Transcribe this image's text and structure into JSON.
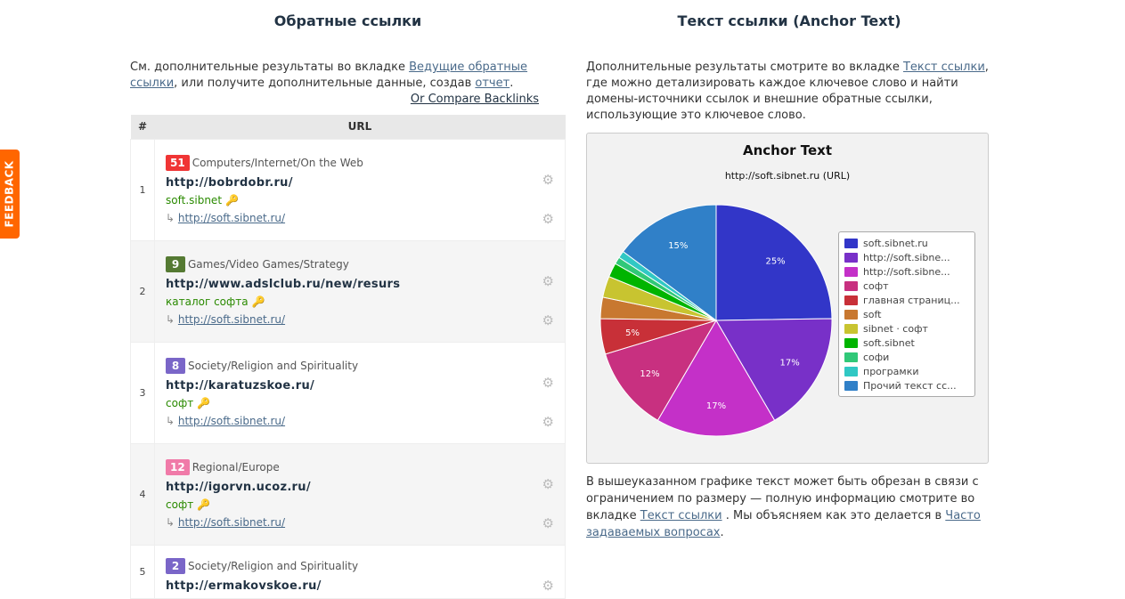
{
  "feedback": "FEEDBACK",
  "left": {
    "title": "Обратные ссылки",
    "intro_pre": "См. дополнительные результаты во вкладке ",
    "intro_link1": "Ведущие обратные ссылки",
    "intro_mid": ", или получите дополнительные данные, создав ",
    "intro_link2": "отчет",
    "intro_post": ".",
    "compare": "Or Compare Backlinks",
    "table": {
      "headers": [
        "#",
        "URL"
      ],
      "rows": [
        {
          "n": "1",
          "score": "51",
          "color": "#f03535",
          "category": "Computers/Internet/On the Web",
          "url": "http://bobrdobr.ru/",
          "anchor": "soft.sibnet",
          "target": "http://soft.sibnet.ru/"
        },
        {
          "n": "2",
          "score": "9",
          "color": "#557a33",
          "category": "Games/Video Games/Strategy",
          "url": "http://www.adslclub.ru/new/resurs",
          "anchor": "каталог софта",
          "target": "http://soft.sibnet.ru/"
        },
        {
          "n": "3",
          "score": "8",
          "color": "#7a66c8",
          "category": "Society/Religion and Spirituality",
          "url": "http://karatuzskoe.ru/",
          "anchor": "софт",
          "target": "http://soft.sibnet.ru/"
        },
        {
          "n": "4",
          "score": "12",
          "color": "#f07aa8",
          "category": "Regional/Europe",
          "url": "http://igorvn.ucoz.ru/",
          "anchor": "софт",
          "target": "http://soft.sibnet.ru/"
        },
        {
          "n": "5",
          "score": "2",
          "color": "#7a66c8",
          "category": "Society/Religion and Spirituality",
          "url": "http://ermakovskoe.ru/",
          "anchor": "",
          "target": ""
        }
      ]
    }
  },
  "right": {
    "title": "Текст ссылки (Anchor Text)",
    "intro_pre": "Дополнительные результаты смотрите во вкладке ",
    "intro_link": "Текст ссылки",
    "intro_post": ", где можно детализировать каждое ключевое слово и найти домены-источники ссылок и внешние обратные ссылки, использующие это ключевое слово.",
    "note_pre": "В вышеуказанном графике текст может быть обрезан в связи с ограничением по размеру — полную информацию смотрите во вкладке ",
    "note_link1": "Текст ссылки",
    "note_mid": " . Мы объясняем как это делается в ",
    "note_link2": "Часто задаваемых вопросах",
    "note_post": "."
  },
  "chart_data": {
    "type": "pie",
    "title": "Anchor Text",
    "subtitle": "http://soft.sibnet.ru (URL)",
    "legend_position": "right",
    "slices": [
      {
        "label": "soft.sibnet.ru",
        "value": 25,
        "color": "#3236c8",
        "shown": "25%"
      },
      {
        "label": "http://soft.sibne...",
        "value": 17,
        "color": "#7830c8",
        "shown": "17%"
      },
      {
        "label": "http://soft.sibne...",
        "value": 17,
        "color": "#c430c8",
        "shown": "17%"
      },
      {
        "label": "софт",
        "value": 12,
        "color": "#c83080",
        "shown": "12%"
      },
      {
        "label": "главная страниц...",
        "value": 5,
        "color": "#c83038",
        "shown": "5%"
      },
      {
        "label": "soft",
        "value": 3,
        "color": "#c87830",
        "shown": ""
      },
      {
        "label": "sibnet · софт",
        "value": 3,
        "color": "#c8c430",
        "shown": ""
      },
      {
        "label": "soft.sibnet",
        "value": 2,
        "color": "#00b400",
        "shown": ""
      },
      {
        "label": "софи",
        "value": 1,
        "color": "#30c878",
        "shown": ""
      },
      {
        "label": "програмки",
        "value": 1,
        "color": "#30c8c4",
        "shown": ""
      },
      {
        "label": "Прочий текст сс...",
        "value": 15,
        "color": "#3080c8",
        "shown": "15%"
      }
    ]
  }
}
